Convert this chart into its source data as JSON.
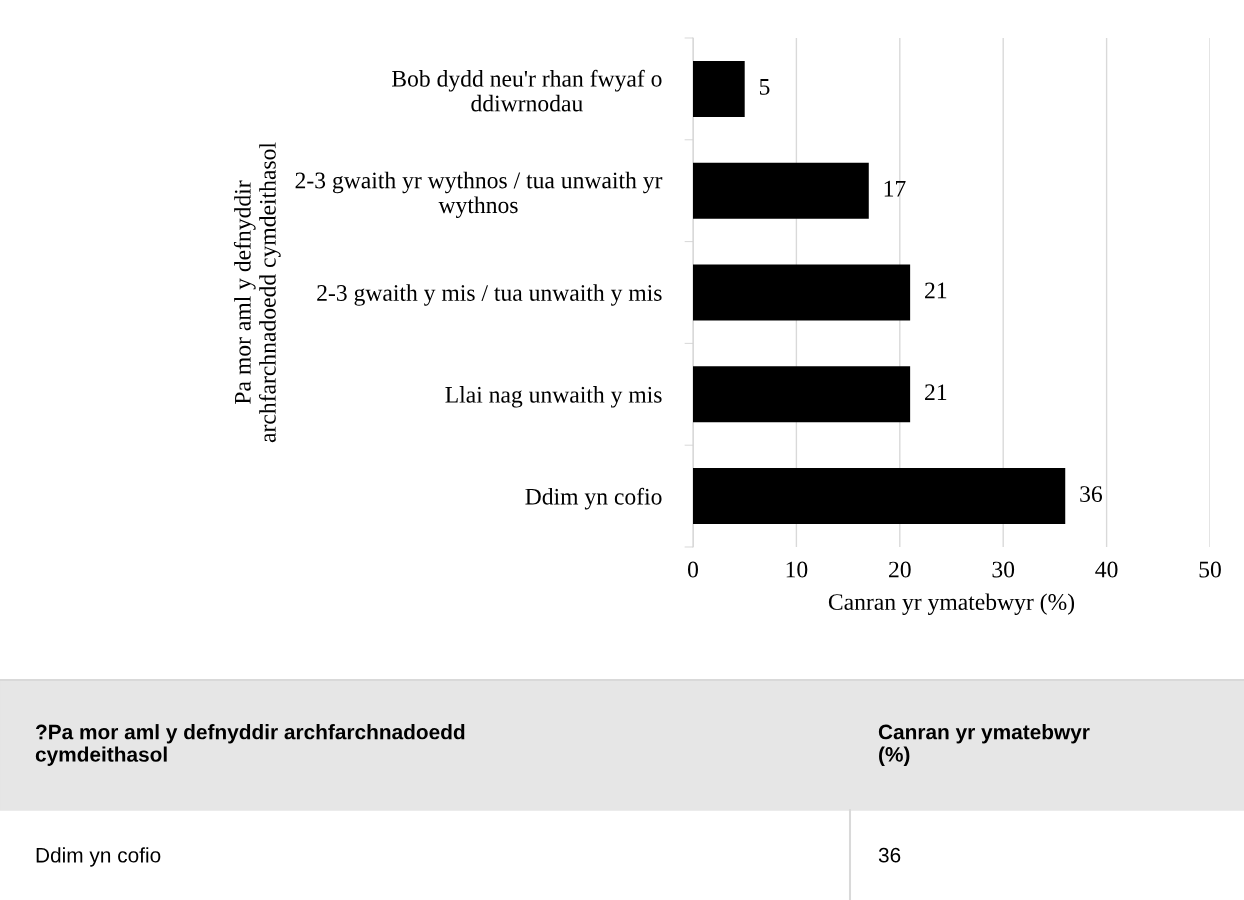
{
  "chart_data": {
    "type": "bar",
    "orientation": "horizontal",
    "categories": [
      "Bob dydd neu'r rhan fwyaf o\nddiwrnodau",
      "2-3 gwaith yr wythnos / tua unwaith yr\nwythnos",
      "2-3 gwaith y mis / tua unwaith y mis",
      "Llai nag unwaith y mis",
      "Ddim yn cofio"
    ],
    "values": [
      5,
      17,
      21,
      21,
      36
    ],
    "color": "#000000",
    "data_labels": true,
    "xlim": [
      0,
      50
    ],
    "xticks": [
      0,
      10,
      20,
      30,
      40,
      50
    ],
    "grid": "x",
    "xlabel": "Canran yr ymatebwyr (%)",
    "ylabel": "Pa mor aml y defnyddir\narchfarchnadoedd cymdeithasol",
    "annotations": [
      "?Pa mor aml y defnyddir archfarchnadoedd\ncymdeithasol",
      "Canran yr ymatebwyr\n(%)",
      "Ddim yn cofio",
      "36"
    ]
  }
}
